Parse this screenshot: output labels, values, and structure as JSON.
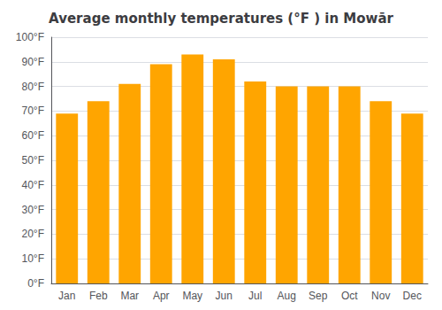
{
  "chart_data": {
    "type": "bar",
    "title": "Average monthly temperatures (°F ) in Mowār",
    "categories": [
      "Jan",
      "Feb",
      "Mar",
      "Apr",
      "May",
      "Jun",
      "Jul",
      "Aug",
      "Sep",
      "Oct",
      "Nov",
      "Dec"
    ],
    "values": [
      69,
      74,
      81,
      89,
      93,
      91,
      82,
      80,
      80,
      80,
      74,
      69
    ],
    "color": "#ffa500",
    "ylim": [
      0,
      100
    ],
    "yticks": [
      {
        "value": 0,
        "label": "0°F"
      },
      {
        "value": 10,
        "label": "10°F"
      },
      {
        "value": 20,
        "label": "20°F"
      },
      {
        "value": 30,
        "label": "30°F"
      },
      {
        "value": 40,
        "label": "40°F"
      },
      {
        "value": 50,
        "label": "50°F"
      },
      {
        "value": 60,
        "label": "60°F"
      },
      {
        "value": 70,
        "label": "70°F"
      },
      {
        "value": 80,
        "label": "80°F"
      },
      {
        "value": 90,
        "label": "90°F"
      },
      {
        "value": 100,
        "label": "100°F"
      }
    ],
    "grid": true
  }
}
